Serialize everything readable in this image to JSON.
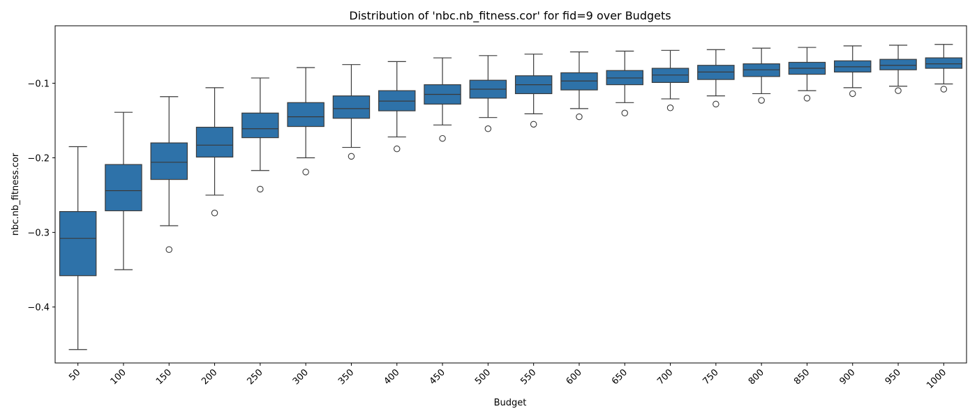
{
  "chart_data": {
    "type": "box",
    "title": "Distribution of 'nbc.nb_fitness.cor' for fid=9 over Budgets",
    "xlabel": "Budget",
    "ylabel": "nbc.nb_fitness.cor",
    "ylim": [
      -0.475,
      -0.023
    ],
    "yticks": [
      -0.1,
      -0.2,
      -0.3,
      -0.4
    ],
    "ytick_labels": [
      "−0.1",
      "−0.2",
      "−0.3",
      "−0.4"
    ],
    "grid": false,
    "colors": {
      "box_fill": "#2e72a9",
      "line": "#3a3a3a",
      "outlier_edge": "#3a3a3a"
    },
    "categories": [
      "50",
      "100",
      "150",
      "200",
      "250",
      "300",
      "350",
      "400",
      "450",
      "500",
      "550",
      "600",
      "650",
      "700",
      "750",
      "800",
      "850",
      "900",
      "950",
      "1000"
    ],
    "boxes": [
      {
        "whislo": -0.457,
        "q1": -0.358,
        "med": -0.308,
        "q3": -0.272,
        "whishi": -0.185,
        "fliers": []
      },
      {
        "whislo": -0.35,
        "q1": -0.271,
        "med": -0.244,
        "q3": -0.209,
        "whishi": -0.139,
        "fliers": []
      },
      {
        "whislo": -0.291,
        "q1": -0.229,
        "med": -0.206,
        "q3": -0.18,
        "whishi": -0.118,
        "fliers": [
          -0.323
        ]
      },
      {
        "whislo": -0.25,
        "q1": -0.199,
        "med": -0.183,
        "q3": -0.159,
        "whishi": -0.106,
        "fliers": [
          -0.274
        ]
      },
      {
        "whislo": -0.217,
        "q1": -0.173,
        "med": -0.161,
        "q3": -0.14,
        "whishi": -0.093,
        "fliers": [
          -0.242
        ]
      },
      {
        "whislo": -0.2,
        "q1": -0.158,
        "med": -0.145,
        "q3": -0.126,
        "whishi": -0.079,
        "fliers": [
          -0.219
        ]
      },
      {
        "whislo": -0.186,
        "q1": -0.147,
        "med": -0.134,
        "q3": -0.117,
        "whishi": -0.075,
        "fliers": [
          -0.198
        ]
      },
      {
        "whislo": -0.172,
        "q1": -0.137,
        "med": -0.124,
        "q3": -0.11,
        "whishi": -0.071,
        "fliers": [
          -0.188
        ]
      },
      {
        "whislo": -0.156,
        "q1": -0.128,
        "med": -0.115,
        "q3": -0.102,
        "whishi": -0.066,
        "fliers": [
          -0.174
        ]
      },
      {
        "whislo": -0.146,
        "q1": -0.12,
        "med": -0.108,
        "q3": -0.096,
        "whishi": -0.063,
        "fliers": [
          -0.161
        ]
      },
      {
        "whislo": -0.141,
        "q1": -0.114,
        "med": -0.102,
        "q3": -0.09,
        "whishi": -0.061,
        "fliers": [
          -0.155
        ]
      },
      {
        "whislo": -0.134,
        "q1": -0.109,
        "med": -0.097,
        "q3": -0.086,
        "whishi": -0.058,
        "fliers": [
          -0.145
        ]
      },
      {
        "whislo": -0.126,
        "q1": -0.102,
        "med": -0.093,
        "q3": -0.083,
        "whishi": -0.057,
        "fliers": [
          -0.14
        ]
      },
      {
        "whislo": -0.121,
        "q1": -0.099,
        "med": -0.089,
        "q3": -0.08,
        "whishi": -0.056,
        "fliers": [
          -0.133
        ]
      },
      {
        "whislo": -0.117,
        "q1": -0.095,
        "med": -0.085,
        "q3": -0.076,
        "whishi": -0.055,
        "fliers": [
          -0.128
        ]
      },
      {
        "whislo": -0.114,
        "q1": -0.091,
        "med": -0.082,
        "q3": -0.074,
        "whishi": -0.053,
        "fliers": [
          -0.123
        ]
      },
      {
        "whislo": -0.11,
        "q1": -0.088,
        "med": -0.08,
        "q3": -0.072,
        "whishi": -0.052,
        "fliers": [
          -0.12
        ]
      },
      {
        "whislo": -0.106,
        "q1": -0.085,
        "med": -0.078,
        "q3": -0.07,
        "whishi": -0.05,
        "fliers": [
          -0.114
        ]
      },
      {
        "whislo": -0.104,
        "q1": -0.082,
        "med": -0.076,
        "q3": -0.068,
        "whishi": -0.049,
        "fliers": [
          -0.11
        ]
      },
      {
        "whislo": -0.101,
        "q1": -0.08,
        "med": -0.074,
        "q3": -0.066,
        "whishi": -0.048,
        "fliers": [
          -0.108
        ]
      }
    ]
  }
}
